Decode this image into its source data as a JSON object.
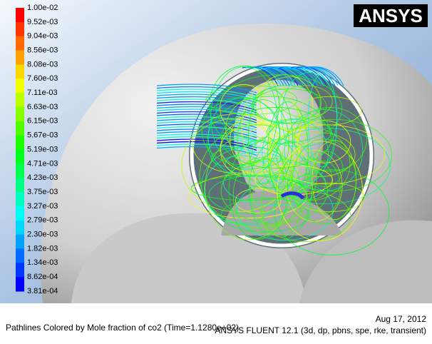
{
  "logo": "ANSYS",
  "legend": {
    "labels": [
      "1.00e-02",
      "9.52e-03",
      "9.04e-03",
      "8.56e-03",
      "8.08e-03",
      "7.60e-03",
      "7.11e-03",
      "6.63e-03",
      "6.15e-03",
      "5.67e-03",
      "5.19e-03",
      "4.71e-03",
      "4.23e-03",
      "3.75e-03",
      "3.27e-03",
      "2.79e-03",
      "2.30e-03",
      "1.82e-03",
      "1.34e-03",
      "8.62e-04",
      "3.81e-04"
    ]
  },
  "caption": {
    "title": "Pathlines Colored by Mole fraction of co2  (Time=1.1280e+02)",
    "date": "Aug 17, 2012",
    "software": "ANSYS FLUENT 12.1 (3d, dp, pbns, spe, rke, transient)"
  }
}
